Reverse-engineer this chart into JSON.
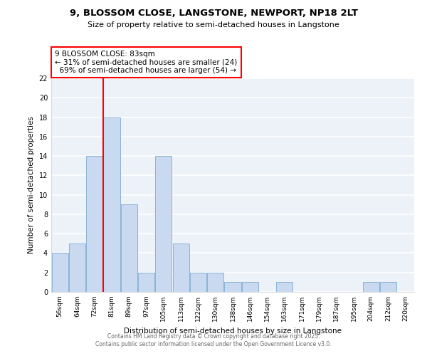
{
  "title1": "9, BLOSSOM CLOSE, LANGSTONE, NEWPORT, NP18 2LT",
  "title2": "Size of property relative to semi-detached houses in Langstone",
  "xlabel": "Distribution of semi-detached houses by size in Langstone",
  "ylabel": "Number of semi-detached properties",
  "categories": [
    "56sqm",
    "64sqm",
    "72sqm",
    "81sqm",
    "89sqm",
    "97sqm",
    "105sqm",
    "113sqm",
    "122sqm",
    "130sqm",
    "138sqm",
    "146sqm",
    "154sqm",
    "163sqm",
    "171sqm",
    "179sqm",
    "187sqm",
    "195sqm",
    "204sqm",
    "212sqm",
    "220sqm"
  ],
  "values": [
    4,
    5,
    14,
    18,
    9,
    2,
    14,
    5,
    2,
    2,
    1,
    1,
    0,
    1,
    0,
    0,
    0,
    0,
    1,
    1,
    0
  ],
  "bar_color": "#c8d9f0",
  "bar_edge_color": "#8ab4d8",
  "red_line_index": 3,
  "annotation_line1": "9 BLOSSOM CLOSE: 83sqm",
  "annotation_line2": "← 31% of semi-detached houses are smaller (24)",
  "annotation_line3": "  69% of semi-detached houses are larger (54) →",
  "ylim": [
    0,
    22
  ],
  "yticks": [
    0,
    2,
    4,
    6,
    8,
    10,
    12,
    14,
    16,
    18,
    20,
    22
  ],
  "footer1": "Contains HM Land Registry data © Crown copyright and database right 2025.",
  "footer2": "Contains public sector information licensed under the Open Government Licence v3.0.",
  "background_color": "#edf2f9"
}
